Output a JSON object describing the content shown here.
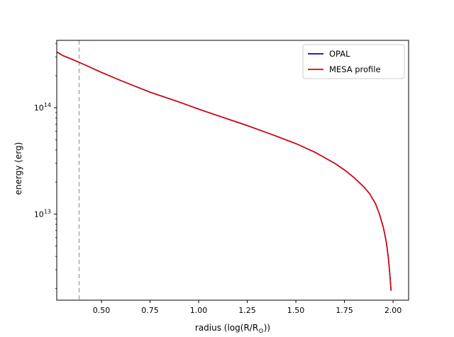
{
  "chart_data": {
    "type": "line",
    "title": "",
    "xlabel": "radius (log(R/R",
    "xlabel_sub": "⊙",
    "xlabel_tail": "))",
    "ylabel": "energy (erg)",
    "xlim": [
      0.27,
      2.08
    ],
    "ylim": [
      1550000000000.0,
      430000000000000.0
    ],
    "yscale": "log",
    "grid": false,
    "legend_position": "top-right",
    "x_ticks": [
      0.5,
      0.75,
      1.0,
      1.25,
      1.5,
      1.75,
      2.0
    ],
    "x_tick_labels": [
      "0.50",
      "0.75",
      "1.00",
      "1.25",
      "1.50",
      "1.75",
      "2.00"
    ],
    "y_ticks": [
      10000000000000.0,
      100000000000000.0
    ],
    "y_tick_labels": [
      {
        "base": "10",
        "exp": "13"
      },
      {
        "base": "10",
        "exp": "14"
      }
    ],
    "vline": {
      "x": 0.385,
      "color": "#aaaaaa",
      "style": "dashed"
    },
    "series": [
      {
        "name": "OPAL",
        "color": "#0000cc",
        "x": [
          0.27,
          0.3,
          0.35,
          0.4,
          0.5,
          0.6,
          0.75,
          0.9,
          1.0,
          1.1,
          1.25,
          1.4,
          1.5,
          1.6,
          1.7,
          1.75,
          1.8,
          1.85,
          1.88,
          1.91,
          1.93,
          1.95,
          1.965,
          1.975,
          1.98,
          1.985,
          1.988,
          1.99
        ],
        "y": [
          335000000000000.0,
          310000000000000.0,
          285000000000000.0,
          260000000000000.0,
          215000000000000.0,
          180000000000000.0,
          140000000000000.0,
          113000000000000.0,
          97000000000000.0,
          84000000000000.0,
          68000000000000.0,
          54000000000000.0,
          46000000000000.0,
          38000000000000.0,
          30000000000000.0,
          26000000000000.0,
          22000000000000.0,
          18000000000000.0,
          15500000000000.0,
          12500000000000.0,
          10000000000000.0,
          7500000000000.0,
          5500000000000.0,
          4000000000000.0,
          3200000000000.0,
          2500000000000.0,
          2100000000000.0,
          1900000000000.0
        ]
      },
      {
        "name": "MESA profile",
        "color": "#dd0000",
        "x": [
          0.27,
          0.3,
          0.35,
          0.4,
          0.5,
          0.6,
          0.75,
          0.9,
          1.0,
          1.1,
          1.25,
          1.4,
          1.5,
          1.6,
          1.7,
          1.75,
          1.8,
          1.85,
          1.88,
          1.91,
          1.93,
          1.95,
          1.965,
          1.975,
          1.98,
          1.985,
          1.988,
          1.99
        ],
        "y": [
          335000000000000.0,
          310000000000000.0,
          285000000000000.0,
          260000000000000.0,
          215000000000000.0,
          180000000000000.0,
          140000000000000.0,
          113000000000000.0,
          97000000000000.0,
          84000000000000.0,
          68000000000000.0,
          54000000000000.0,
          46000000000000.0,
          38000000000000.0,
          30000000000000.0,
          26000000000000.0,
          22000000000000.0,
          18000000000000.0,
          15500000000000.0,
          12500000000000.0,
          10000000000000.0,
          7500000000000.0,
          5500000000000.0,
          4000000000000.0,
          3200000000000.0,
          2500000000000.0,
          2100000000000.0,
          1900000000000.0
        ]
      }
    ]
  }
}
